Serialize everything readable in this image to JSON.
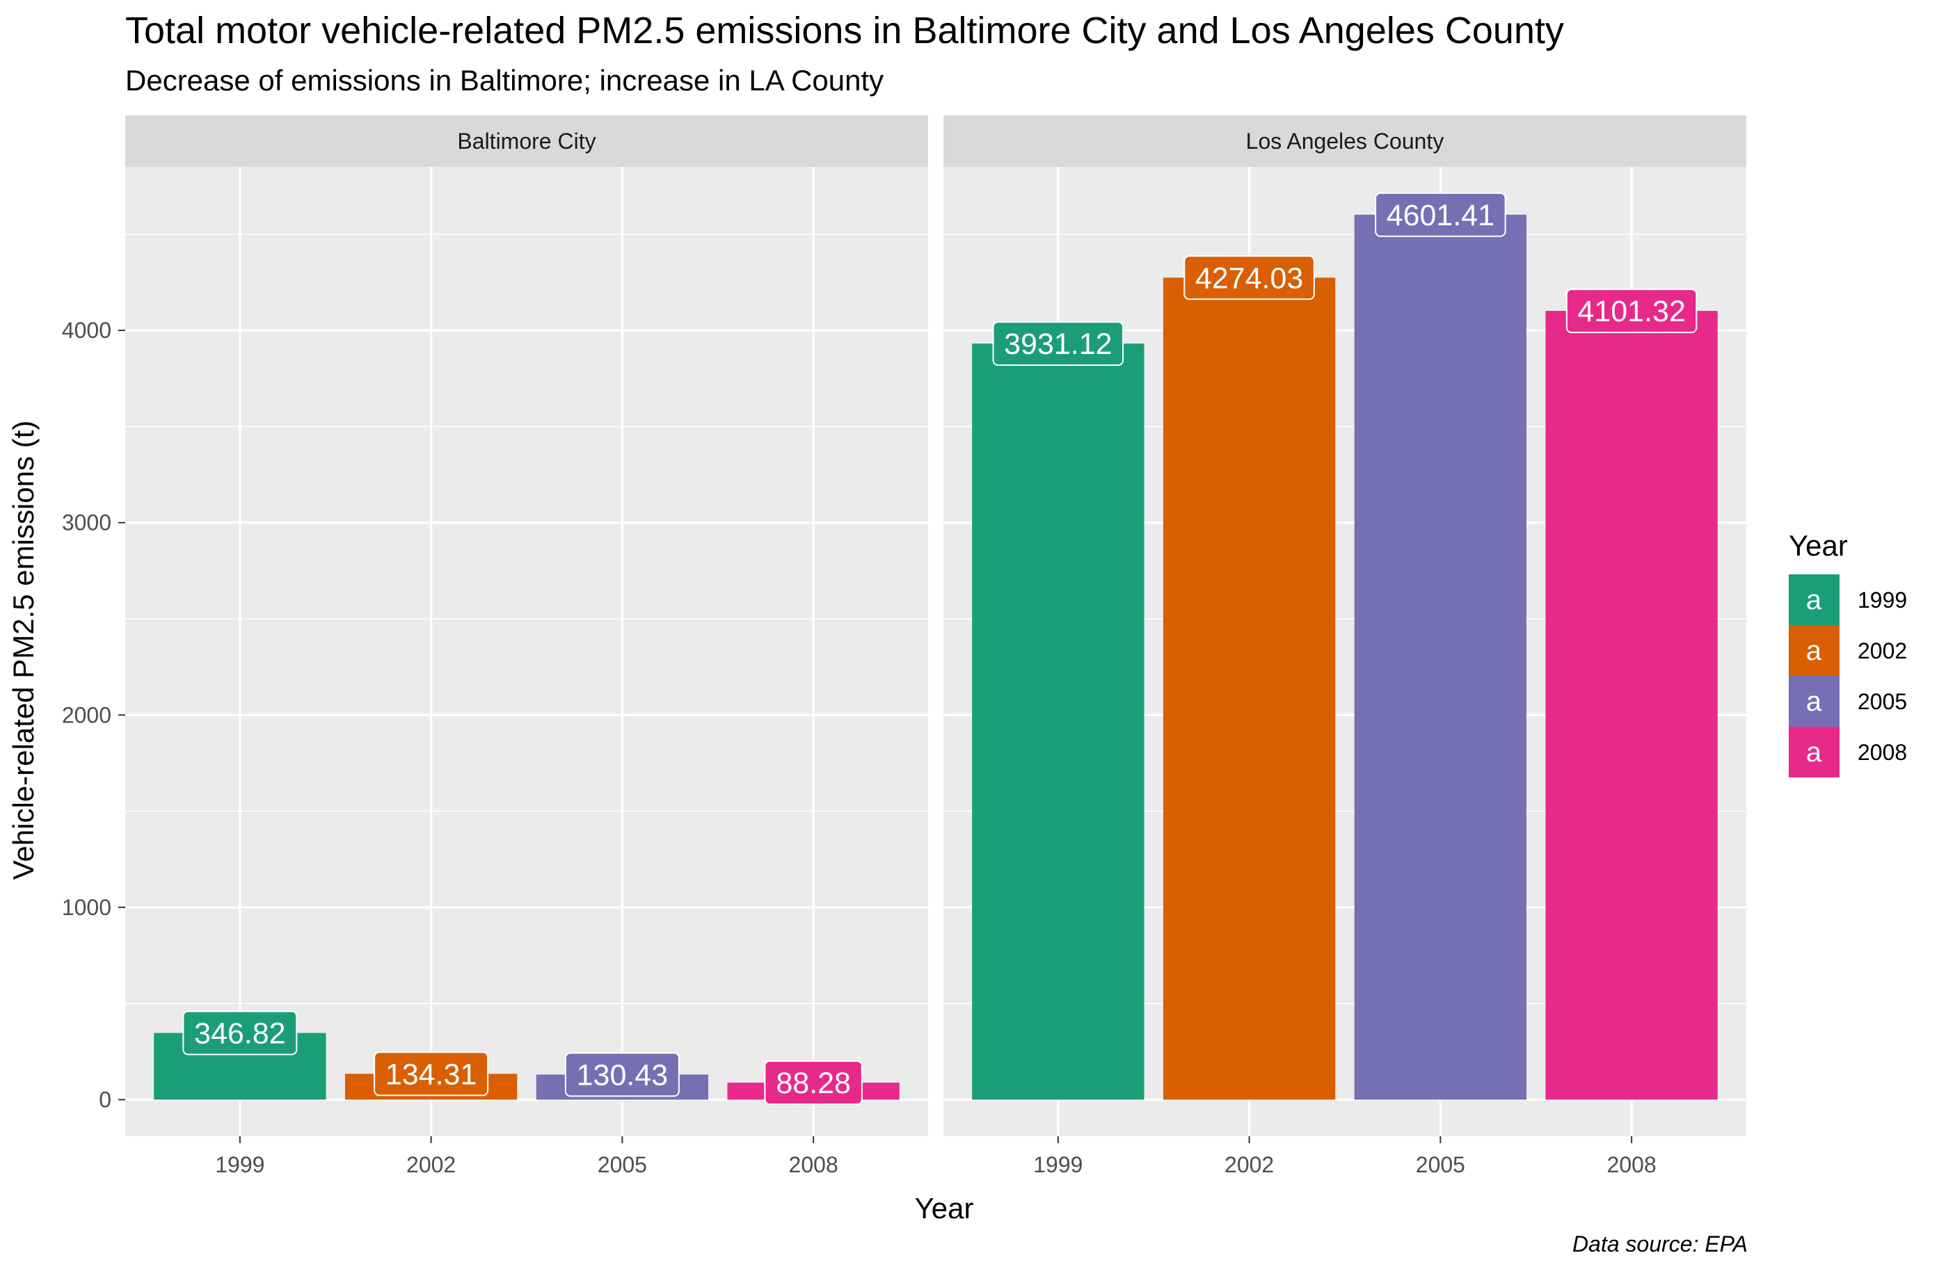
{
  "chart_data": {
    "type": "bar",
    "title": "Total motor vehicle-related PM2.5 emissions in Baltimore City and Los Angeles County",
    "subtitle": "Decrease of emissions in Baltimore; increase in LA County",
    "xlabel": "Year",
    "ylabel": "Vehicle-related PM2.5 emissions (t)",
    "caption": "Data source: EPA",
    "categories": [
      "1999",
      "2002",
      "2005",
      "2008"
    ],
    "ylim": [
      -190,
      4850
    ],
    "yticks": [
      0,
      1000,
      2000,
      3000,
      4000
    ],
    "grid": true,
    "legend": {
      "title": "Year",
      "position": "right",
      "key_glyph": "a",
      "entries": [
        "1999",
        "2002",
        "2005",
        "2008"
      ]
    },
    "colors": {
      "1999": "#1b9e77",
      "2002": "#d95f02",
      "2005": "#7570b3",
      "2008": "#e7298a"
    },
    "panels": [
      {
        "name": "Baltimore City",
        "values": [
          346.82,
          134.31,
          130.43,
          88.28
        ],
        "labels": [
          "346.82",
          "134.31",
          "130.43",
          "88.28"
        ]
      },
      {
        "name": "Los Angeles County",
        "values": [
          3931.12,
          4274.03,
          4601.41,
          4101.32
        ],
        "labels": [
          "3931.12",
          "4274.03",
          "4601.41",
          "4101.32"
        ]
      }
    ]
  }
}
